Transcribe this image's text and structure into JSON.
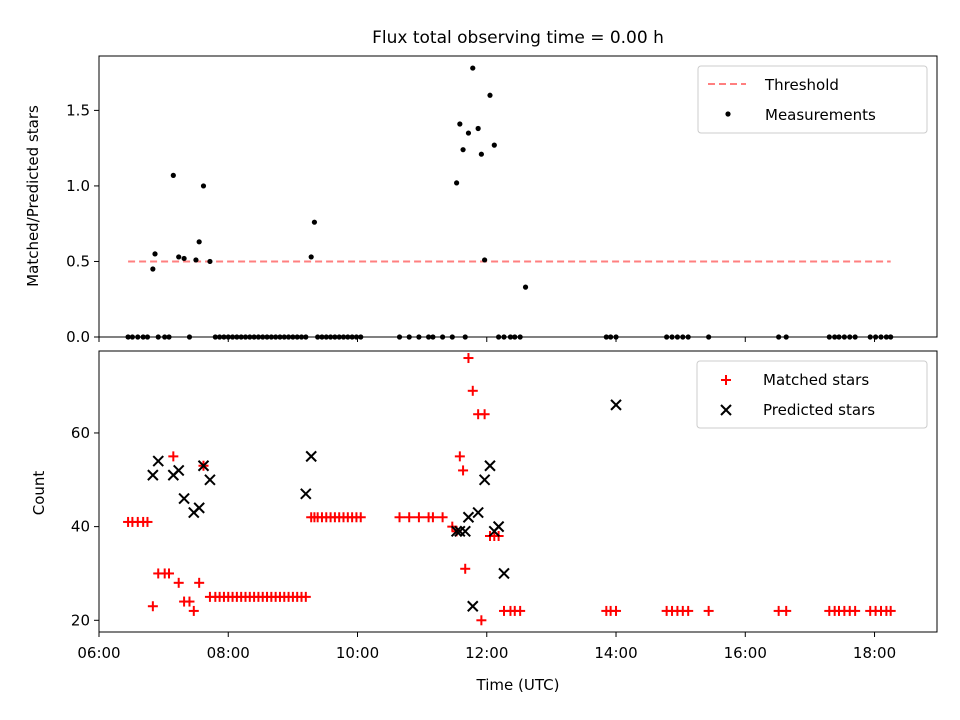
{
  "chart_data": [
    {
      "type": "scatter",
      "title": "Flux total observing time = 0.00 h",
      "xlabel": "",
      "ylabel": "Matched/Predicted stars",
      "xlim": [
        "06:00",
        "18:58"
      ],
      "ylim": [
        0,
        1.86
      ],
      "yticks": [
        "0.0",
        "0.5",
        "1.0",
        "1.5"
      ],
      "xticks_shown": false,
      "legend_position": "top-right",
      "legend": [
        "Threshold",
        "Measurements"
      ],
      "colors": {
        "threshold": "#ff7f7f",
        "measurements": "#000000"
      },
      "threshold": {
        "name": "Threshold",
        "value": 0.5,
        "x_start": "06:27",
        "x_end": "18:15",
        "style": "dashed"
      },
      "series": [
        {
          "name": "Measurements",
          "marker": "dot",
          "x": [
            "06:27",
            "06:31",
            "06:36",
            "06:41",
            "06:45",
            "06:50",
            "06:52",
            "06:55",
            "07:01",
            "07:05",
            "07:09",
            "07:14",
            "07:19",
            "07:24",
            "07:30",
            "07:33",
            "07:37",
            "07:43",
            "07:48",
            "07:52",
            "07:56",
            "08:00",
            "08:04",
            "08:08",
            "08:12",
            "08:16",
            "08:20",
            "08:24",
            "08:28",
            "08:32",
            "08:36",
            "08:40",
            "08:44",
            "08:48",
            "08:52",
            "08:56",
            "09:00",
            "09:04",
            "09:08",
            "09:12",
            "09:17",
            "09:20",
            "09:23",
            "09:27",
            "09:31",
            "09:35",
            "09:39",
            "09:43",
            "09:47",
            "09:51",
            "09:55",
            "09:59",
            "10:03",
            "10:39",
            "10:48",
            "10:57",
            "11:06",
            "11:10",
            "11:19",
            "11:28",
            "11:32",
            "11:35",
            "11:38",
            "11:40",
            "11:43",
            "11:47",
            "11:52",
            "11:55",
            "11:58",
            "12:03",
            "12:07",
            "12:11",
            "12:16",
            "12:22",
            "12:26",
            "12:31",
            "12:36",
            "13:51",
            "13:55",
            "14:00",
            "14:47",
            "14:52",
            "14:57",
            "15:02",
            "15:07",
            "15:26",
            "16:31",
            "16:38",
            "17:18",
            "17:23",
            "17:27",
            "17:32",
            "17:37",
            "17:42",
            "17:56",
            "18:01",
            "18:06",
            "18:11",
            "18:15"
          ],
          "y": [
            0.0,
            0.0,
            0.0,
            0.0,
            0.0,
            0.45,
            0.55,
            0.0,
            0.0,
            0.0,
            1.07,
            0.53,
            0.52,
            0.0,
            0.51,
            0.63,
            1.0,
            0.5,
            0.0,
            0.0,
            0.0,
            0.0,
            0.0,
            0.0,
            0.0,
            0.0,
            0.0,
            0.0,
            0.0,
            0.0,
            0.0,
            0.0,
            0.0,
            0.0,
            0.0,
            0.0,
            0.0,
            0.0,
            0.0,
            0.0,
            0.53,
            0.76,
            0.0,
            0.0,
            0.0,
            0.0,
            0.0,
            0.0,
            0.0,
            0.0,
            0.0,
            0.0,
            0.0,
            0.0,
            0.0,
            0.0,
            0.0,
            0.0,
            0.0,
            0.0,
            1.02,
            1.41,
            1.24,
            0.0,
            1.35,
            1.78,
            1.38,
            1.21,
            0.51,
            1.6,
            1.27,
            0.0,
            0.0,
            0.0,
            0.0,
            0.0,
            0.33,
            0.0,
            0.0,
            0.0,
            0.0,
            0.0,
            0.0,
            0.0,
            0.0,
            0.0,
            0.0,
            0.0,
            0.0,
            0.0,
            0.0,
            0.0,
            0.0,
            0.0,
            0.0,
            0.0,
            0.0,
            0.0,
            0.0
          ]
        }
      ]
    },
    {
      "type": "scatter",
      "title": "",
      "xlabel": "Time (UTC)",
      "ylabel": "Count",
      "xlim": [
        "06:00",
        "18:58"
      ],
      "ylim": [
        17.5,
        77.5
      ],
      "xticks": [
        "06:00",
        "08:00",
        "10:00",
        "12:00",
        "14:00",
        "16:00",
        "18:00"
      ],
      "yticks": [
        "20",
        "40",
        "60"
      ],
      "legend_position": "top-right",
      "legend": [
        "Matched stars",
        "Predicted stars"
      ],
      "colors": {
        "matched": "#ff0000",
        "predicted": "#000000"
      },
      "series": [
        {
          "name": "Matched stars",
          "marker": "plus",
          "x": [
            "06:27",
            "06:31",
            "06:36",
            "06:41",
            "06:45",
            "06:50",
            "06:55",
            "07:01",
            "07:05",
            "07:09",
            "07:14",
            "07:19",
            "07:24",
            "07:28",
            "07:33",
            "07:37",
            "07:43",
            "07:48",
            "07:52",
            "07:56",
            "08:00",
            "08:04",
            "08:08",
            "08:12",
            "08:16",
            "08:20",
            "08:24",
            "08:28",
            "08:32",
            "08:36",
            "08:40",
            "08:44",
            "08:48",
            "08:52",
            "08:56",
            "09:00",
            "09:04",
            "09:08",
            "09:12",
            "09:17",
            "09:20",
            "09:23",
            "09:27",
            "09:31",
            "09:35",
            "09:39",
            "09:43",
            "09:47",
            "09:51",
            "09:55",
            "09:59",
            "10:03",
            "10:39",
            "10:48",
            "10:57",
            "11:06",
            "11:10",
            "11:19",
            "11:28",
            "11:32",
            "11:35",
            "11:38",
            "11:40",
            "11:43",
            "11:47",
            "11:52",
            "11:55",
            "11:58",
            "12:03",
            "12:07",
            "12:11",
            "12:16",
            "12:22",
            "12:26",
            "12:31",
            "13:51",
            "13:55",
            "14:00",
            "14:47",
            "14:52",
            "14:57",
            "15:02",
            "15:07",
            "15:26",
            "16:31",
            "16:38",
            "17:18",
            "17:23",
            "17:27",
            "17:32",
            "17:37",
            "17:42",
            "17:56",
            "18:01",
            "18:06",
            "18:11",
            "18:15"
          ],
          "y": [
            41,
            41,
            41,
            41,
            41,
            23,
            30,
            30,
            30,
            55,
            28,
            24,
            24,
            22,
            28,
            53,
            25,
            25,
            25,
            25,
            25,
            25,
            25,
            25,
            25,
            25,
            25,
            25,
            25,
            25,
            25,
            25,
            25,
            25,
            25,
            25,
            25,
            25,
            25,
            42,
            42,
            42,
            42,
            42,
            42,
            42,
            42,
            42,
            42,
            42,
            42,
            42,
            42,
            42,
            42,
            42,
            42,
            42,
            40,
            39,
            55,
            52,
            31,
            76,
            69,
            64,
            20,
            64,
            38,
            38,
            38,
            22,
            22,
            22,
            22,
            22,
            22,
            22,
            22,
            22,
            22,
            22,
            22,
            22,
            22,
            22,
            22,
            22,
            22,
            22,
            22,
            22,
            22,
            22,
            22,
            22,
            22
          ]
        },
        {
          "name": "Predicted stars",
          "marker": "x",
          "x": [
            "06:50",
            "06:55",
            "07:09",
            "07:14",
            "07:19",
            "07:28",
            "07:33",
            "07:37",
            "07:43",
            "09:12",
            "09:17",
            "11:32",
            "11:35",
            "11:40",
            "11:43",
            "11:47",
            "11:52",
            "11:58",
            "12:03",
            "12:07",
            "12:11",
            "12:16",
            "14:00"
          ],
          "y": [
            51,
            54,
            51,
            52,
            46,
            43,
            44,
            53,
            50,
            47,
            55,
            39,
            39,
            39,
            42,
            23,
            43,
            50,
            53,
            39,
            40,
            30,
            66
          ]
        }
      ]
    }
  ]
}
